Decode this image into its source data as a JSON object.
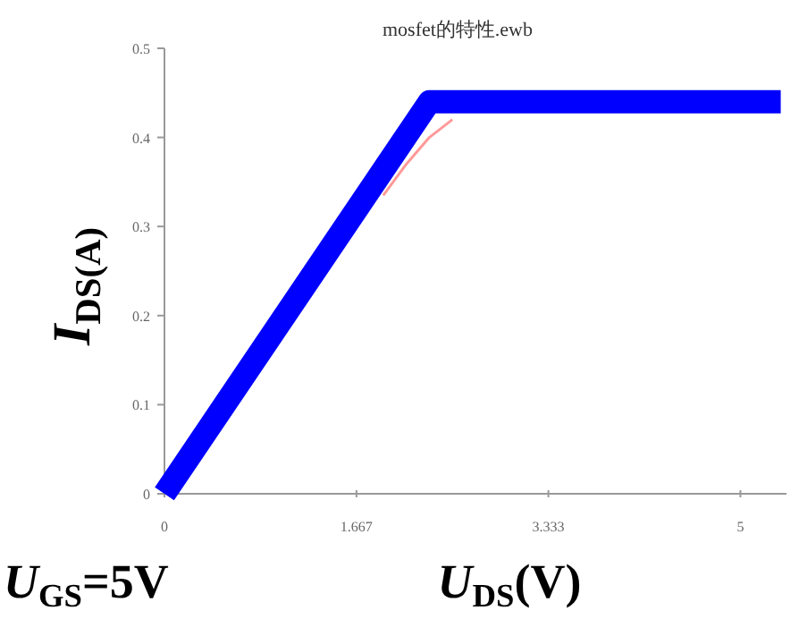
{
  "chart_data": {
    "type": "line",
    "title": "mosfet的特性.ewb",
    "xlabel": "U$_{DS}$(V)",
    "ylabel": "I$_{DS(A)}$",
    "annotations": [
      "U$_{GS}$=5V"
    ],
    "xlim": [
      0,
      5.4
    ],
    "ylim": [
      0,
      0.5
    ],
    "xticks": [
      0,
      1.667,
      3.333,
      5
    ],
    "yticks": [
      0,
      0.1,
      0.2,
      0.3,
      0.4,
      0.5
    ],
    "grid": false,
    "series": [
      {
        "color": "#ff9999",
        "x": [
          1.9,
          2.1,
          2.3,
          2.5
        ],
        "values": [
          0.335,
          0.37,
          0.4,
          0.42
        ]
      },
      {
        "color": "#0000ff",
        "x": [
          0,
          2.3,
          5.35
        ],
        "values": [
          0,
          0.44,
          0.44
        ]
      }
    ]
  }
}
